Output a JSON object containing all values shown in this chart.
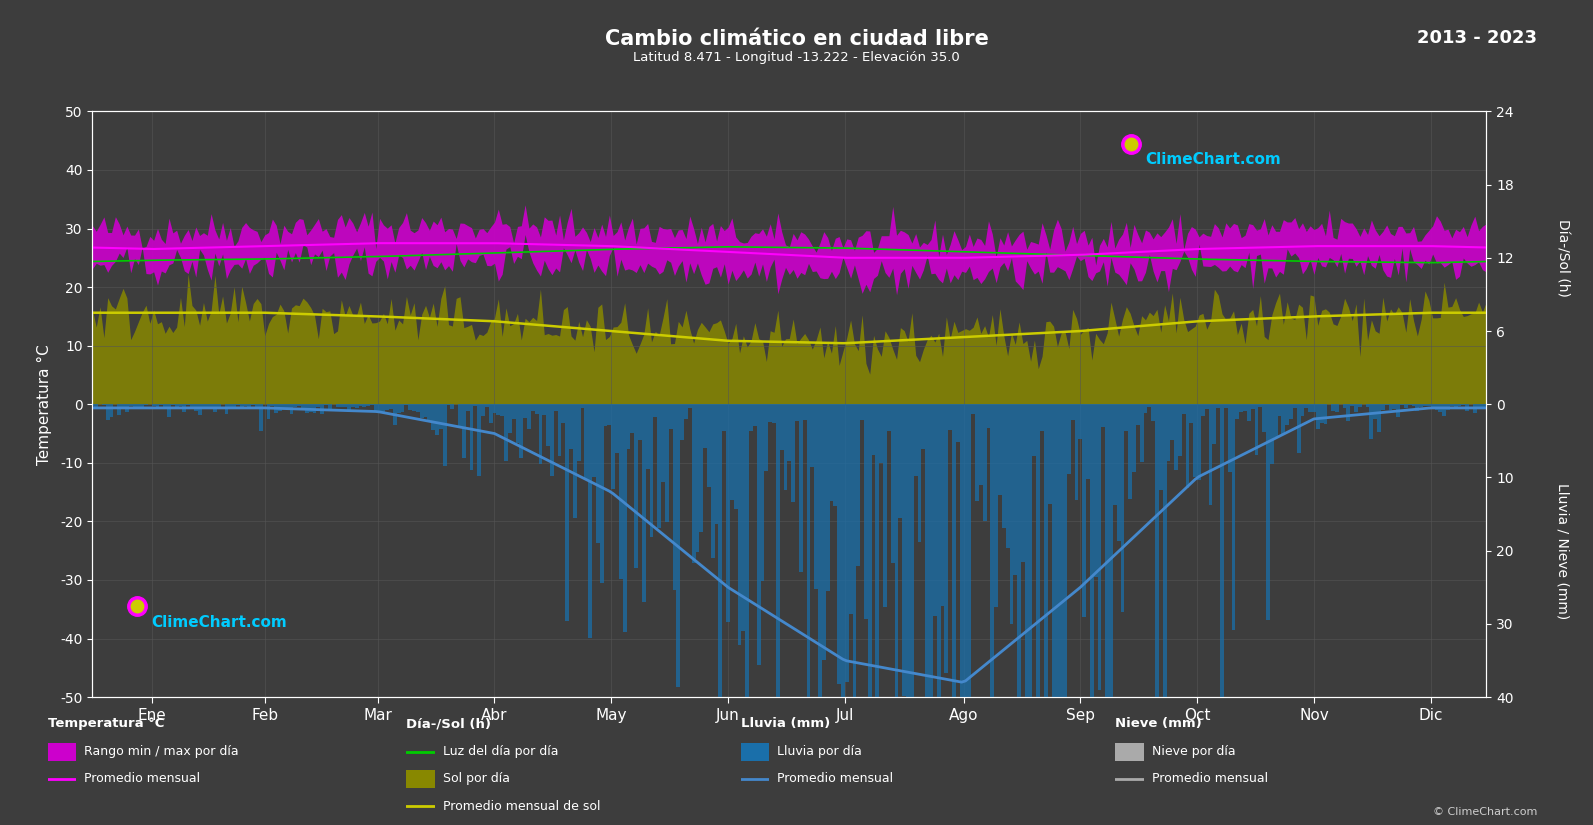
{
  "title": "Cambio climático en ciudad libre",
  "subtitle": "Latitud 8.471 - Longitud -13.222 - Elevación 35.0",
  "year_range": "2013 - 2023",
  "background_color": "#3d3d3d",
  "plot_bg_color": "#3d3d3d",
  "grid_color": "#555555",
  "text_color": "#ffffff",
  "months": [
    "Ene",
    "Feb",
    "Mar",
    "Abr",
    "May",
    "Jun",
    "Jul",
    "Ago",
    "Sep",
    "Oct",
    "Nov",
    "Dic"
  ],
  "temp_ylim": [
    -50,
    50
  ],
  "temp_avg_monthly": [
    26.5,
    27.0,
    27.5,
    27.5,
    27.0,
    26.0,
    25.0,
    25.0,
    25.5,
    26.5,
    27.0,
    27.0
  ],
  "temp_max_monthly": [
    29.5,
    30.0,
    30.5,
    30.5,
    30.0,
    29.0,
    28.0,
    28.0,
    28.5,
    29.5,
    30.0,
    30.0
  ],
  "temp_min_monthly": [
    23.5,
    24.0,
    24.5,
    24.5,
    24.0,
    23.0,
    22.0,
    22.0,
    22.5,
    23.5,
    24.0,
    24.0
  ],
  "sun_avg_monthly": [
    7.5,
    7.5,
    7.2,
    6.8,
    6.0,
    5.2,
    5.0,
    5.5,
    6.0,
    6.8,
    7.2,
    7.5
  ],
  "daylight_avg_monthly": [
    11.8,
    11.9,
    12.1,
    12.4,
    12.7,
    12.9,
    12.8,
    12.5,
    12.2,
    11.9,
    11.7,
    11.6
  ],
  "rain_avg_monthly": [
    0.5,
    0.5,
    1.0,
    4.0,
    12.0,
    25.0,
    35.0,
    38.0,
    25.0,
    10.0,
    2.0,
    0.5
  ],
  "temp_color_avg": "#ff00ff",
  "temp_fill_color": "#cc00cc",
  "sun_fill_color": "#888800",
  "sun_line_color": "#cccc00",
  "daylight_color": "#00cc00",
  "rain_color": "#1a6faa",
  "rain_avg_color": "#4488cc",
  "snow_color": "#aaaaaa",
  "logo_color1": "#ff00ff",
  "logo_color2": "#cccc00",
  "logo_text_color": "#00ccff"
}
